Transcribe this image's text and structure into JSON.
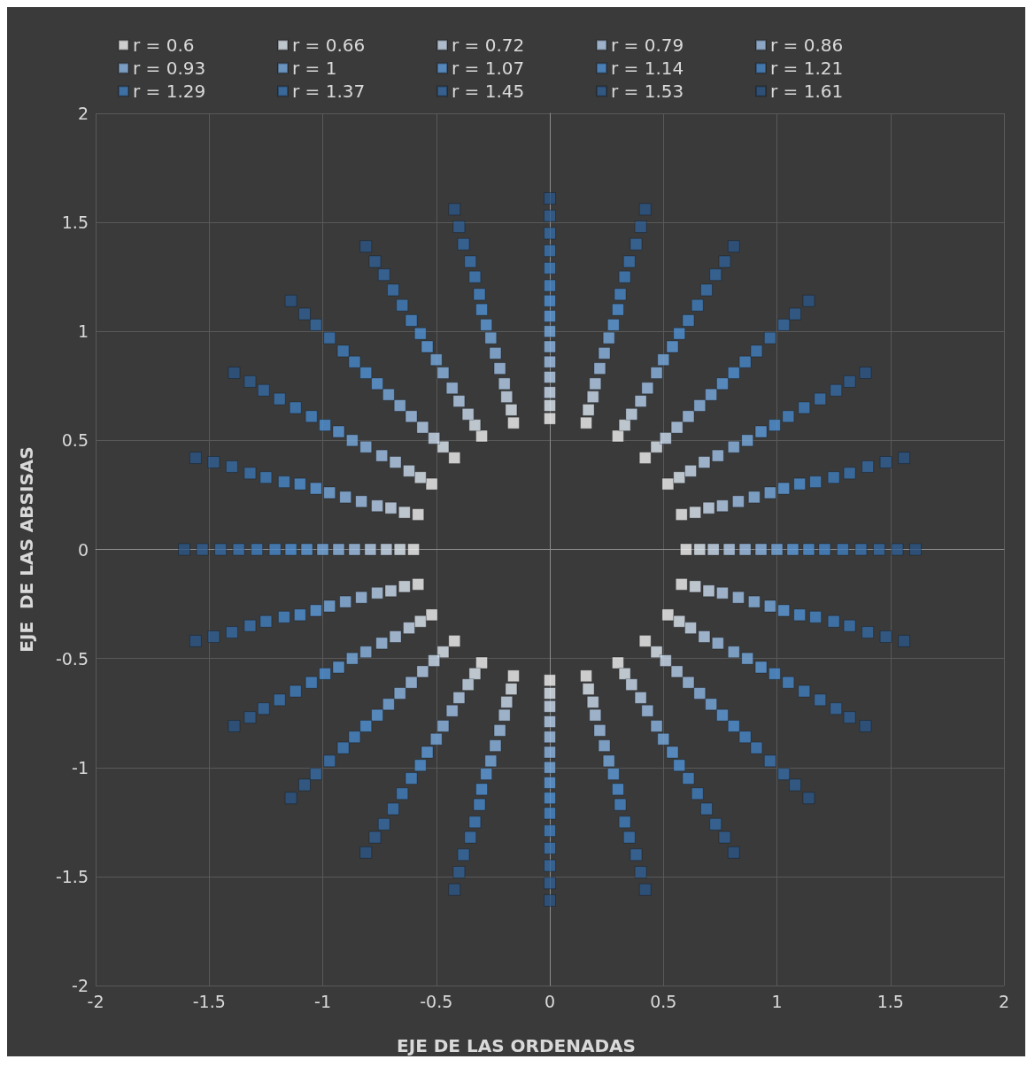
{
  "chart_data": {
    "type": "scatter",
    "xlabel": "EJE DE LAS ORDENADAS",
    "ylabel": "EJE  DE LAS ABSISAS",
    "xlim": [
      -2,
      2
    ],
    "ylim": [
      -2,
      2
    ],
    "xticks": [
      -2,
      -1.5,
      -1,
      -0.5,
      0,
      0.5,
      1,
      1.5,
      2
    ],
    "yticks": [
      -2,
      -1.5,
      -1,
      -0.5,
      0,
      0.5,
      1,
      1.5,
      2
    ],
    "grid": true,
    "legend": "top",
    "marker": "square",
    "series": [
      {
        "name": "r = 0.6",
        "color": "#f2f2f2",
        "x": [
          0.6,
          0.58,
          0.52,
          0.42,
          0.3,
          0.16,
          0,
          -0.16,
          -0.3,
          -0.42,
          -0.52,
          -0.58,
          -0.6,
          -0.58,
          -0.52,
          -0.42,
          -0.3,
          -0.16,
          0,
          0.16,
          0.3,
          0.42,
          0.52,
          0.58
        ],
        "values": [
          0,
          0.16,
          0.3,
          0.42,
          0.52,
          0.58,
          0.6,
          0.58,
          0.52,
          0.42,
          0.3,
          0.16,
          0,
          -0.16,
          -0.3,
          -0.42,
          -0.52,
          -0.58,
          -0.6,
          -0.58,
          -0.52,
          -0.42,
          -0.3,
          -0.16
        ]
      },
      {
        "name": "r = 0.66",
        "color": "#dfe8f3",
        "x": [
          0.66,
          0.64,
          0.57,
          0.47,
          0.33,
          0.17,
          0,
          -0.17,
          -0.33,
          -0.47,
          -0.57,
          -0.64,
          -0.66,
          -0.64,
          -0.57,
          -0.47,
          -0.33,
          -0.17,
          0,
          0.17,
          0.33,
          0.47,
          0.57,
          0.64
        ],
        "values": [
          0,
          0.17,
          0.33,
          0.47,
          0.57,
          0.64,
          0.66,
          0.64,
          0.57,
          0.47,
          0.33,
          0.17,
          0,
          -0.17,
          -0.33,
          -0.47,
          -0.57,
          -0.64,
          -0.66,
          -0.64,
          -0.57,
          -0.47,
          -0.33,
          -0.17
        ]
      },
      {
        "name": "r = 0.72",
        "color": "#cbdcf0",
        "x": [
          0.72,
          0.7,
          0.62,
          0.51,
          0.36,
          0.19,
          0,
          -0.19,
          -0.36,
          -0.51,
          -0.62,
          -0.7,
          -0.72,
          -0.7,
          -0.62,
          -0.51,
          -0.36,
          -0.19,
          0,
          0.19,
          0.36,
          0.51,
          0.62,
          0.7
        ],
        "values": [
          0,
          0.19,
          0.36,
          0.51,
          0.62,
          0.7,
          0.72,
          0.7,
          0.62,
          0.51,
          0.36,
          0.19,
          0,
          -0.19,
          -0.36,
          -0.51,
          -0.62,
          -0.7,
          -0.72,
          -0.7,
          -0.62,
          -0.51,
          -0.36,
          -0.19
        ]
      },
      {
        "name": "r = 0.79",
        "color": "#b6cfec",
        "x": [
          0.79,
          0.76,
          0.68,
          0.56,
          0.4,
          0.2,
          0,
          -0.2,
          -0.4,
          -0.56,
          -0.68,
          -0.76,
          -0.79,
          -0.76,
          -0.68,
          -0.56,
          -0.4,
          -0.2,
          0,
          0.2,
          0.4,
          0.56,
          0.68,
          0.76
        ],
        "values": [
          0,
          0.2,
          0.4,
          0.56,
          0.68,
          0.76,
          0.79,
          0.76,
          0.68,
          0.56,
          0.4,
          0.2,
          0,
          -0.2,
          -0.4,
          -0.56,
          -0.68,
          -0.76,
          -0.79,
          -0.76,
          -0.68,
          -0.56,
          -0.4,
          -0.2
        ]
      },
      {
        "name": "r = 0.86",
        "color": "#a1c2e8",
        "x": [
          0.86,
          0.83,
          0.74,
          0.61,
          0.43,
          0.22,
          0,
          -0.22,
          -0.43,
          -0.61,
          -0.74,
          -0.83,
          -0.86,
          -0.83,
          -0.74,
          -0.61,
          -0.43,
          -0.22,
          0,
          0.22,
          0.43,
          0.61,
          0.74,
          0.83
        ],
        "values": [
          0,
          0.22,
          0.43,
          0.61,
          0.74,
          0.83,
          0.86,
          0.83,
          0.74,
          0.61,
          0.43,
          0.22,
          0,
          -0.22,
          -0.43,
          -0.61,
          -0.74,
          -0.83,
          -0.86,
          -0.83,
          -0.74,
          -0.61,
          -0.43,
          -0.22
        ]
      },
      {
        "name": "r = 0.93",
        "color": "#8cb6e4",
        "x": [
          0.93,
          0.9,
          0.81,
          0.66,
          0.47,
          0.24,
          0,
          -0.24,
          -0.47,
          -0.66,
          -0.81,
          -0.9,
          -0.93,
          -0.9,
          -0.81,
          -0.66,
          -0.47,
          -0.24,
          0,
          0.24,
          0.47,
          0.66,
          0.81,
          0.9
        ],
        "values": [
          0,
          0.24,
          0.47,
          0.66,
          0.81,
          0.9,
          0.93,
          0.9,
          0.81,
          0.66,
          0.47,
          0.24,
          0,
          -0.24,
          -0.47,
          -0.66,
          -0.81,
          -0.9,
          -0.93,
          -0.9,
          -0.81,
          -0.66,
          -0.47,
          -0.24
        ]
      },
      {
        "name": "r = 1",
        "color": "#77aae0",
        "x": [
          1,
          0.97,
          0.87,
          0.71,
          0.5,
          0.26,
          0,
          -0.26,
          -0.5,
          -0.71,
          -0.87,
          -0.97,
          -1,
          -0.97,
          -0.87,
          -0.71,
          -0.5,
          -0.26,
          0,
          0.26,
          0.5,
          0.71,
          0.87,
          0.97
        ],
        "values": [
          0,
          0.26,
          0.5,
          0.71,
          0.87,
          0.97,
          1,
          0.97,
          0.87,
          0.71,
          0.5,
          0.26,
          0,
          -0.26,
          -0.5,
          -0.71,
          -0.87,
          -0.97,
          -1,
          -0.97,
          -0.87,
          -0.71,
          -0.5,
          -0.26
        ]
      },
      {
        "name": "r = 1.07",
        "color": "#5f9cdc",
        "x": [
          1.07,
          1.03,
          0.93,
          0.76,
          0.54,
          0.28,
          0,
          -0.28,
          -0.54,
          -0.76,
          -0.93,
          -1.03,
          -1.07,
          -1.03,
          -0.93,
          -0.76,
          -0.54,
          -0.28,
          0,
          0.28,
          0.54,
          0.76,
          0.93,
          1.03
        ],
        "values": [
          0,
          0.28,
          0.54,
          0.76,
          0.93,
          1.03,
          1.07,
          1.03,
          0.93,
          0.76,
          0.54,
          0.28,
          0,
          -0.28,
          -0.54,
          -0.76,
          -0.93,
          -1.03,
          -1.07,
          -1.03,
          -0.93,
          -0.76,
          -0.54,
          -0.28
        ]
      },
      {
        "name": "r = 1.14",
        "color": "#4f92d6",
        "x": [
          1.14,
          1.1,
          0.99,
          0.81,
          0.57,
          0.3,
          0,
          -0.3,
          -0.57,
          -0.81,
          -0.99,
          -1.1,
          -1.14,
          -1.1,
          -0.99,
          -0.81,
          -0.57,
          -0.3,
          0,
          0.3,
          0.57,
          0.81,
          0.99,
          1.1
        ],
        "values": [
          0,
          0.3,
          0.57,
          0.81,
          0.99,
          1.1,
          1.14,
          1.1,
          0.99,
          0.81,
          0.57,
          0.3,
          0,
          -0.3,
          -0.57,
          -0.81,
          -0.99,
          -1.1,
          -1.14,
          -1.1,
          -0.99,
          -0.81,
          -0.57,
          -0.3
        ]
      },
      {
        "name": "r = 1.21",
        "color": "#4788cb",
        "x": [
          1.21,
          1.17,
          1.05,
          0.86,
          0.61,
          0.31,
          0,
          -0.31,
          -0.61,
          -0.86,
          -1.05,
          -1.17,
          -1.21,
          -1.17,
          -1.05,
          -0.86,
          -0.61,
          -0.31,
          0,
          0.31,
          0.61,
          0.86,
          1.05,
          1.17
        ],
        "values": [
          0,
          0.31,
          0.61,
          0.86,
          1.05,
          1.17,
          1.21,
          1.17,
          1.05,
          0.86,
          0.61,
          0.31,
          0,
          -0.31,
          -0.61,
          -0.86,
          -1.05,
          -1.17,
          -1.21,
          -1.17,
          -1.05,
          -0.86,
          -0.61,
          -0.31
        ]
      },
      {
        "name": "r = 1.29",
        "color": "#407ebe",
        "x": [
          1.29,
          1.25,
          1.12,
          0.91,
          0.65,
          0.33,
          0,
          -0.33,
          -0.65,
          -0.91,
          -1.12,
          -1.25,
          -1.29,
          -1.25,
          -1.12,
          -0.91,
          -0.65,
          -0.33,
          0,
          0.33,
          0.65,
          0.91,
          1.12,
          1.25
        ],
        "values": [
          0,
          0.33,
          0.65,
          0.91,
          1.12,
          1.25,
          1.29,
          1.25,
          1.12,
          0.91,
          0.65,
          0.33,
          0,
          -0.33,
          -0.65,
          -0.91,
          -1.12,
          -1.25,
          -1.29,
          -1.25,
          -1.12,
          -0.91,
          -0.65,
          -0.33
        ]
      },
      {
        "name": "r = 1.37",
        "color": "#3b74b0",
        "x": [
          1.37,
          1.32,
          1.19,
          0.97,
          0.69,
          0.35,
          0,
          -0.35,
          -0.69,
          -0.97,
          -1.19,
          -1.32,
          -1.37,
          -1.32,
          -1.19,
          -0.97,
          -0.69,
          -0.35,
          0,
          0.35,
          0.69,
          0.97,
          1.19,
          1.32
        ],
        "values": [
          0,
          0.35,
          0.69,
          0.97,
          1.19,
          1.32,
          1.37,
          1.32,
          1.19,
          0.97,
          0.69,
          0.35,
          0,
          -0.35,
          -0.69,
          -0.97,
          -1.19,
          -1.32,
          -1.37,
          -1.32,
          -1.19,
          -0.97,
          -0.69,
          -0.35
        ]
      },
      {
        "name": "r = 1.45",
        "color": "#366aa2",
        "x": [
          1.45,
          1.4,
          1.26,
          1.03,
          0.73,
          0.38,
          0,
          -0.38,
          -0.73,
          -1.03,
          -1.26,
          -1.4,
          -1.45,
          -1.4,
          -1.26,
          -1.03,
          -0.73,
          -0.38,
          0,
          0.38,
          0.73,
          1.03,
          1.26,
          1.4
        ],
        "values": [
          0,
          0.38,
          0.73,
          1.03,
          1.26,
          1.4,
          1.45,
          1.4,
          1.26,
          1.03,
          0.73,
          0.38,
          0,
          -0.38,
          -0.73,
          -1.03,
          -1.26,
          -1.4,
          -1.45,
          -1.4,
          -1.26,
          -1.03,
          -0.73,
          -0.38
        ]
      },
      {
        "name": "r = 1.53",
        "color": "#316094",
        "x": [
          1.53,
          1.48,
          1.32,
          1.08,
          0.77,
          0.4,
          0,
          -0.4,
          -0.77,
          -1.08,
          -1.32,
          -1.48,
          -1.53,
          -1.48,
          -1.32,
          -1.08,
          -0.77,
          -0.4,
          0,
          0.4,
          0.77,
          1.08,
          1.32,
          1.48
        ],
        "values": [
          0,
          0.4,
          0.77,
          1.08,
          1.32,
          1.48,
          1.53,
          1.48,
          1.32,
          1.08,
          0.77,
          0.4,
          0,
          -0.4,
          -0.77,
          -1.08,
          -1.32,
          -1.48,
          -1.53,
          -1.48,
          -1.32,
          -1.08,
          -0.77,
          -0.4
        ]
      },
      {
        "name": "r = 1.61",
        "color": "#2c5686",
        "x": [
          1.61,
          1.56,
          1.39,
          1.14,
          0.81,
          0.42,
          0,
          -0.42,
          -0.81,
          -1.14,
          -1.39,
          -1.56,
          -1.61,
          -1.56,
          -1.39,
          -1.14,
          -0.81,
          -0.42,
          0,
          0.42,
          0.81,
          1.14,
          1.39,
          1.56
        ],
        "values": [
          0,
          0.42,
          0.81,
          1.14,
          1.39,
          1.56,
          1.61,
          1.56,
          1.39,
          1.14,
          0.81,
          0.42,
          0,
          -0.42,
          -0.81,
          -1.14,
          -1.39,
          -1.56,
          -1.61,
          -1.56,
          -1.39,
          -1.14,
          -0.81,
          -0.42
        ]
      }
    ]
  }
}
